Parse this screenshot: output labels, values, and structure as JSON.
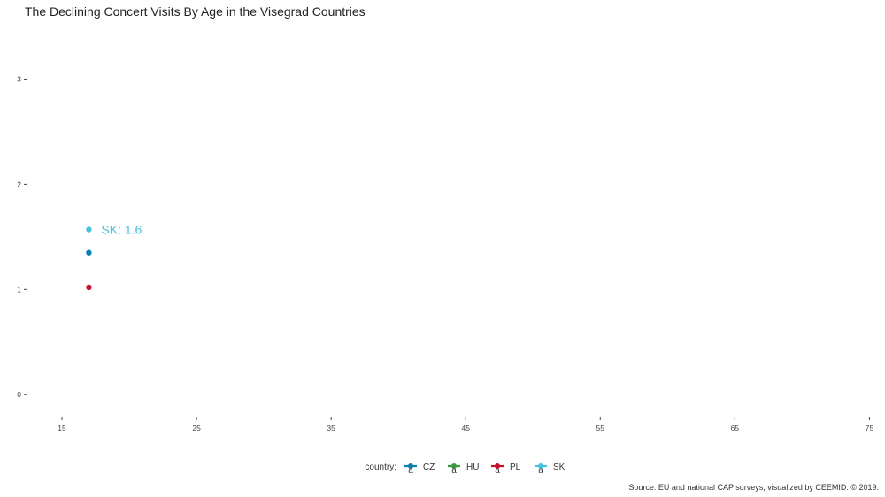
{
  "chart_data": {
    "type": "scatter",
    "title": "The Declining Concert Visits By Age in the Visegrad Countries",
    "xlabel": "",
    "ylabel": "",
    "xlim": [
      12.5,
      75.5
    ],
    "ylim": [
      -0.2,
      3.5
    ],
    "x_ticks": [
      15,
      25,
      35,
      45,
      55,
      65,
      75
    ],
    "y_ticks": [
      0,
      1,
      2,
      3
    ],
    "grid": false,
    "legend": {
      "title": "country:",
      "position": "bottom",
      "glyph": "a",
      "entries": [
        {
          "label": "CZ",
          "color": "#0a7fb5"
        },
        {
          "label": "HU",
          "color": "#3a9a3a"
        },
        {
          "label": "PL",
          "color": "#c8102e"
        },
        {
          "label": "SK",
          "color": "#49c0dd"
        }
      ]
    },
    "series": [
      {
        "name": "CZ",
        "color": "#0a7fb5",
        "points": [
          {
            "x": 17,
            "y": 1.35
          }
        ]
      },
      {
        "name": "PL",
        "color": "#c8102e",
        "points": [
          {
            "x": 17,
            "y": 1.02
          }
        ]
      },
      {
        "name": "SK",
        "color": "#49c0dd",
        "points": [
          {
            "x": 17,
            "y": 1.57
          }
        ]
      }
    ],
    "annotations": [
      {
        "text": "SK: 1.6",
        "series": "SK",
        "x": 17,
        "y": 1.57
      }
    ],
    "caption": "Source: EU and national CAP surveys, visualized by CEEMID. © 2019."
  }
}
